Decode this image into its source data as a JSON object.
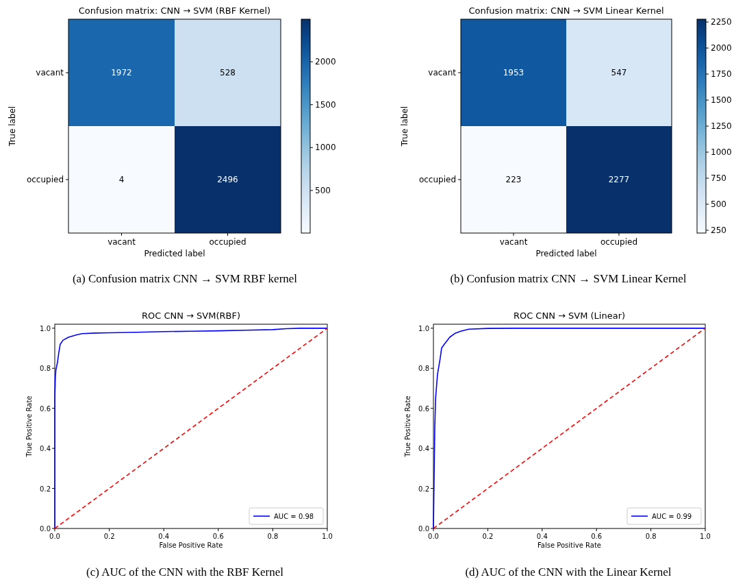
{
  "chart_data": [
    {
      "type": "heatmap",
      "title": "Confusion matrix: CNN → SVM (RBF Kernel)",
      "xlabel": "Predicted label",
      "ylabel": "True label",
      "categories": [
        "vacant",
        "occupied"
      ],
      "y_categories": [
        "vacant",
        "occupied"
      ],
      "cells": [
        [
          1972,
          528
        ],
        [
          4,
          2496
        ]
      ],
      "data_labels": true,
      "clim": [
        4,
        2496
      ],
      "cticks": [
        500,
        1000,
        1500,
        2000
      ],
      "annotations": [
        "(a) Confusion matrix CNN → SVM RBF kernel"
      ]
    },
    {
      "type": "heatmap",
      "title": "Confusion matrix: CNN → SVM Linear Kernel",
      "xlabel": "Predicted label",
      "ylabel": "True label",
      "categories": [
        "vacant",
        "occupied"
      ],
      "y_categories": [
        "vacant",
        "occupied"
      ],
      "cells": [
        [
          1953,
          547
        ],
        [
          223,
          2277
        ]
      ],
      "data_labels": true,
      "clim": [
        223,
        2277
      ],
      "cticks": [
        250,
        500,
        750,
        1000,
        1250,
        1500,
        1750,
        2000,
        2250
      ],
      "annotations": [
        "(b) Confusion matrix CNN → SVM Linear Kernel"
      ]
    },
    {
      "type": "line",
      "title": "ROC CNN → SVM(RBF)",
      "xlabel": "False Positive Rate",
      "ylabel": "True Positive Rate",
      "xlim": [
        0,
        1
      ],
      "ylim": [
        0,
        1.02
      ],
      "xticks": [
        {
          "value": 0,
          "label": "0.0"
        },
        {
          "value": 0.2,
          "label": "0.2"
        },
        {
          "value": 0.4,
          "label": "0.4"
        },
        {
          "value": 0.6,
          "label": "0.6"
        },
        {
          "value": 0.8,
          "label": "0.8"
        },
        {
          "value": 1,
          "label": "1.0"
        }
      ],
      "yticks": [
        {
          "value": 0,
          "label": "0.0"
        },
        {
          "value": 0.2,
          "label": "0.2"
        },
        {
          "value": 0.4,
          "label": "0.4"
        },
        {
          "value": 0.6,
          "label": "0.6"
        },
        {
          "value": 0.8,
          "label": "0.8"
        },
        {
          "value": 1,
          "label": "1.0"
        }
      ],
      "legend": "bottom right",
      "series": [
        {
          "name": "AUC = 0.98",
          "color": "#0000ff",
          "x": [
            0,
            0,
            0.002,
            0.004,
            0.01,
            0.015,
            0.02,
            0.03,
            0.05,
            0.08,
            0.1,
            0.15,
            0.2,
            0.3,
            0.4,
            0.5,
            0.6,
            0.7,
            0.8,
            0.85,
            0.9,
            1
          ],
          "values": [
            0,
            0.65,
            0.75,
            0.79,
            0.83,
            0.88,
            0.92,
            0.94,
            0.955,
            0.967,
            0.973,
            0.976,
            0.977,
            0.98,
            0.983,
            0.985,
            0.987,
            0.99,
            0.993,
            0.998,
            1,
            1
          ]
        },
        {
          "color": "#ff0000",
          "line_style": "dashed",
          "x": [
            0,
            1
          ],
          "values": [
            0,
            1
          ]
        }
      ],
      "annotations": [
        "(c) AUC of the CNN with the RBF Kernel"
      ]
    },
    {
      "type": "line",
      "title": "ROC CNN → SVM (Linear)",
      "xlabel": "False Positive Rate",
      "ylabel": "True Positive Rate",
      "xlim": [
        0,
        1
      ],
      "ylim": [
        0,
        1.02
      ],
      "xticks": [
        {
          "value": 0,
          "label": "0.0"
        },
        {
          "value": 0.2,
          "label": "0.2"
        },
        {
          "value": 0.4,
          "label": "0.4"
        },
        {
          "value": 0.6,
          "label": "0.6"
        },
        {
          "value": 0.8,
          "label": "0.8"
        },
        {
          "value": 1,
          "label": "1.0"
        }
      ],
      "yticks": [
        {
          "value": 0,
          "label": "0.0"
        },
        {
          "value": 0.2,
          "label": "0.2"
        },
        {
          "value": 0.4,
          "label": "0.4"
        },
        {
          "value": 0.6,
          "label": "0.6"
        },
        {
          "value": 0.8,
          "label": "0.8"
        },
        {
          "value": 1,
          "label": "1.0"
        }
      ],
      "legend": "bottom right",
      "series": [
        {
          "name": "AUC = 0.99",
          "color": "#0000ff",
          "x": [
            0,
            0.003,
            0.005,
            0.008,
            0.015,
            0.025,
            0.03,
            0.04,
            0.06,
            0.08,
            0.1,
            0.13,
            0.2,
            0.3,
            1
          ],
          "values": [
            0,
            0.3,
            0.5,
            0.65,
            0.77,
            0.85,
            0.9,
            0.92,
            0.955,
            0.975,
            0.985,
            0.995,
            0.999,
            1,
            1
          ]
        },
        {
          "color": "#ff0000",
          "line_style": "dashed",
          "x": [
            0,
            1
          ],
          "values": [
            0,
            1
          ]
        }
      ],
      "annotations": [
        "(d) AUC of the CNN with the Linear Kernel"
      ]
    }
  ]
}
